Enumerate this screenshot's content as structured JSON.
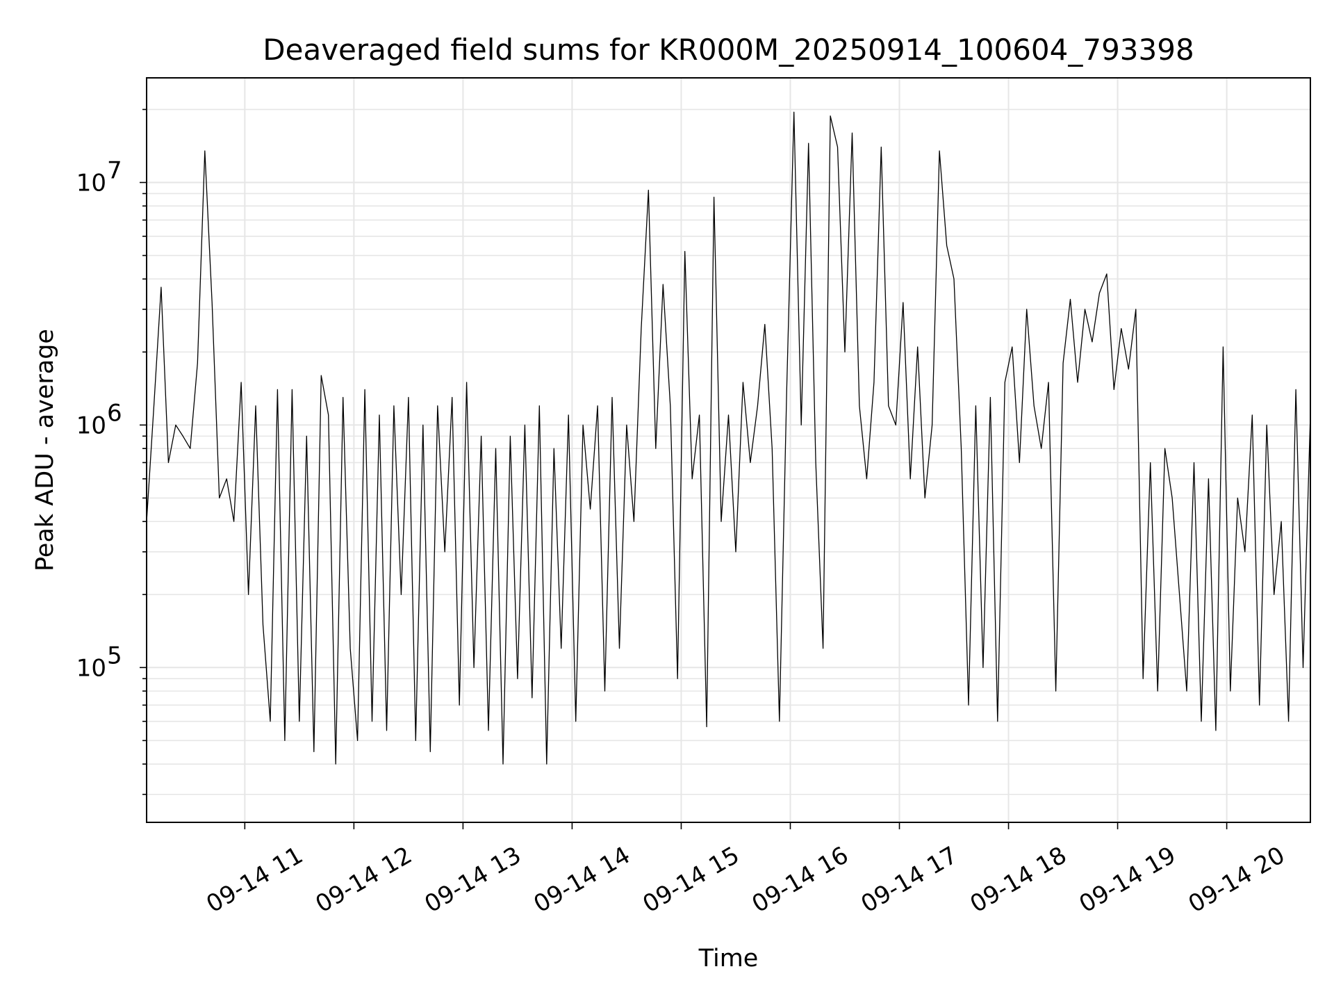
{
  "chart_data": {
    "type": "line",
    "title": "Deaveraged field sums for KR000M_20250914_100604_793398",
    "xlabel": "Time",
    "ylabel": "Peak ADU - average",
    "y_scale": "log",
    "ylim": [
      23000,
      27000000
    ],
    "xlim": [
      "2025-09-14 10:06",
      "2025-09-14 20:46"
    ],
    "grid": true,
    "line_color": "#000000",
    "x_ticks": [
      {
        "time": "2025-09-14 11:00",
        "label": "09-14 11"
      },
      {
        "time": "2025-09-14 12:00",
        "label": "09-14 12"
      },
      {
        "time": "2025-09-14 13:00",
        "label": "09-14 13"
      },
      {
        "time": "2025-09-14 14:00",
        "label": "09-14 14"
      },
      {
        "time": "2025-09-14 15:00",
        "label": "09-14 15"
      },
      {
        "time": "2025-09-14 16:00",
        "label": "09-14 16"
      },
      {
        "time": "2025-09-14 17:00",
        "label": "09-14 17"
      },
      {
        "time": "2025-09-14 18:00",
        "label": "09-14 18"
      },
      {
        "time": "2025-09-14 19:00",
        "label": "09-14 19"
      },
      {
        "time": "2025-09-14 20:00",
        "label": "09-14 20"
      }
    ],
    "y_ticks": [
      {
        "value": 100000,
        "base": "10",
        "exp": "5"
      },
      {
        "value": 1000000,
        "base": "10",
        "exp": "6"
      },
      {
        "value": 10000000,
        "base": "10",
        "exp": "7"
      }
    ],
    "series": [
      {
        "x": [
          "2025-09-14 10:06",
          "2025-09-14 10:10",
          "2025-09-14 10:14",
          "2025-09-14 10:18",
          "2025-09-14 10:22",
          "2025-09-14 10:26",
          "2025-09-14 10:30",
          "2025-09-14 10:34",
          "2025-09-14 10:38",
          "2025-09-14 10:42",
          "2025-09-14 10:46",
          "2025-09-14 10:50",
          "2025-09-14 10:54",
          "2025-09-14 10:58",
          "2025-09-14 11:02",
          "2025-09-14 11:06",
          "2025-09-14 11:10",
          "2025-09-14 11:14",
          "2025-09-14 11:18",
          "2025-09-14 11:22",
          "2025-09-14 11:26",
          "2025-09-14 11:30",
          "2025-09-14 11:34",
          "2025-09-14 11:38",
          "2025-09-14 11:42",
          "2025-09-14 11:46",
          "2025-09-14 11:50",
          "2025-09-14 11:54",
          "2025-09-14 11:58",
          "2025-09-14 12:02",
          "2025-09-14 12:06",
          "2025-09-14 12:10",
          "2025-09-14 12:14",
          "2025-09-14 12:18",
          "2025-09-14 12:22",
          "2025-09-14 12:26",
          "2025-09-14 12:30",
          "2025-09-14 12:34",
          "2025-09-14 12:38",
          "2025-09-14 12:42",
          "2025-09-14 12:46",
          "2025-09-14 12:50",
          "2025-09-14 12:54",
          "2025-09-14 12:58",
          "2025-09-14 13:02",
          "2025-09-14 13:06",
          "2025-09-14 13:10",
          "2025-09-14 13:14",
          "2025-09-14 13:18",
          "2025-09-14 13:22",
          "2025-09-14 13:26",
          "2025-09-14 13:30",
          "2025-09-14 13:34",
          "2025-09-14 13:38",
          "2025-09-14 13:42",
          "2025-09-14 13:46",
          "2025-09-14 13:50",
          "2025-09-14 13:54",
          "2025-09-14 13:58",
          "2025-09-14 14:02",
          "2025-09-14 14:06",
          "2025-09-14 14:10",
          "2025-09-14 14:14",
          "2025-09-14 14:18",
          "2025-09-14 14:22",
          "2025-09-14 14:26",
          "2025-09-14 14:30",
          "2025-09-14 14:34",
          "2025-09-14 14:38",
          "2025-09-14 14:42",
          "2025-09-14 14:46",
          "2025-09-14 14:50",
          "2025-09-14 14:54",
          "2025-09-14 14:58",
          "2025-09-14 15:02",
          "2025-09-14 15:06",
          "2025-09-14 15:10",
          "2025-09-14 15:14",
          "2025-09-14 15:18",
          "2025-09-14 15:22",
          "2025-09-14 15:26",
          "2025-09-14 15:30",
          "2025-09-14 15:34",
          "2025-09-14 15:38",
          "2025-09-14 15:42",
          "2025-09-14 15:46",
          "2025-09-14 15:50",
          "2025-09-14 15:54",
          "2025-09-14 15:58",
          "2025-09-14 16:02",
          "2025-09-14 16:06",
          "2025-09-14 16:10",
          "2025-09-14 16:14",
          "2025-09-14 16:18",
          "2025-09-14 16:22",
          "2025-09-14 16:26",
          "2025-09-14 16:30",
          "2025-09-14 16:34",
          "2025-09-14 16:38",
          "2025-09-14 16:42",
          "2025-09-14 16:46",
          "2025-09-14 16:50",
          "2025-09-14 16:54",
          "2025-09-14 16:58",
          "2025-09-14 17:02",
          "2025-09-14 17:06",
          "2025-09-14 17:10",
          "2025-09-14 17:14",
          "2025-09-14 17:18",
          "2025-09-14 17:22",
          "2025-09-14 17:26",
          "2025-09-14 17:30",
          "2025-09-14 17:34",
          "2025-09-14 17:38",
          "2025-09-14 17:42",
          "2025-09-14 17:46",
          "2025-09-14 17:50",
          "2025-09-14 17:54",
          "2025-09-14 17:58",
          "2025-09-14 18:02",
          "2025-09-14 18:06",
          "2025-09-14 18:10",
          "2025-09-14 18:14",
          "2025-09-14 18:18",
          "2025-09-14 18:22",
          "2025-09-14 18:26",
          "2025-09-14 18:30",
          "2025-09-14 18:34",
          "2025-09-14 18:38",
          "2025-09-14 18:42",
          "2025-09-14 18:46",
          "2025-09-14 18:50",
          "2025-09-14 18:54",
          "2025-09-14 18:58",
          "2025-09-14 19:02",
          "2025-09-14 19:06",
          "2025-09-14 19:10",
          "2025-09-14 19:14",
          "2025-09-14 19:18",
          "2025-09-14 19:22",
          "2025-09-14 19:26",
          "2025-09-14 19:30",
          "2025-09-14 19:34",
          "2025-09-14 19:38",
          "2025-09-14 19:42",
          "2025-09-14 19:46",
          "2025-09-14 19:50",
          "2025-09-14 19:54",
          "2025-09-14 19:58",
          "2025-09-14 20:02",
          "2025-09-14 20:06",
          "2025-09-14 20:10",
          "2025-09-14 20:14",
          "2025-09-14 20:18",
          "2025-09-14 20:22",
          "2025-09-14 20:26",
          "2025-09-14 20:30",
          "2025-09-14 20:34",
          "2025-09-14 20:38",
          "2025-09-14 20:42",
          "2025-09-14 20:46"
        ],
        "y": [
          400000,
          1200000,
          3700000,
          700000,
          1000000,
          900000,
          800000,
          1800000,
          13500000,
          3200000,
          500000,
          600000,
          400000,
          1500000,
          200000,
          1200000,
          150000,
          60000,
          1400000,
          50000,
          1400000,
          60000,
          900000,
          45000,
          1600000,
          1100000,
          40000,
          1300000,
          120000,
          50000,
          1400000,
          60000,
          1100000,
          55000,
          1200000,
          200000,
          1300000,
          50000,
          1000000,
          45000,
          1200000,
          300000,
          1300000,
          70000,
          1500000,
          100000,
          900000,
          55000,
          800000,
          40000,
          900000,
          90000,
          1000000,
          75000,
          1200000,
          40000,
          800000,
          120000,
          1100000,
          60000,
          1000000,
          450000,
          1200000,
          80000,
          1300000,
          120000,
          1000000,
          400000,
          2500000,
          9300000,
          800000,
          3800000,
          1200000,
          90000,
          5200000,
          600000,
          1100000,
          57000,
          8700000,
          400000,
          1100000,
          300000,
          1500000,
          700000,
          1200000,
          2600000,
          800000,
          60000,
          1400000,
          19500000,
          1000000,
          14500000,
          700000,
          120000,
          18800000,
          14000000,
          2000000,
          16000000,
          1200000,
          600000,
          1500000,
          14000000,
          1200000,
          1000000,
          3200000,
          600000,
          2100000,
          500000,
          1000000,
          13500000,
          5500000,
          4000000,
          800000,
          70000,
          1200000,
          100000,
          1300000,
          60000,
          1500000,
          2100000,
          700000,
          3000000,
          1200000,
          800000,
          1500000,
          80000,
          1800000,
          3300000,
          1500000,
          3000000,
          2200000,
          3500000,
          4200000,
          1400000,
          2500000,
          1700000,
          3000000,
          90000,
          700000,
          80000,
          800000,
          500000,
          200000,
          80000,
          700000,
          60000,
          600000,
          55000,
          2100000,
          80000,
          500000,
          300000,
          1100000,
          70000,
          1000000,
          200000,
          400000,
          60000,
          1400000,
          100000,
          1100000
        ]
      }
    ]
  }
}
